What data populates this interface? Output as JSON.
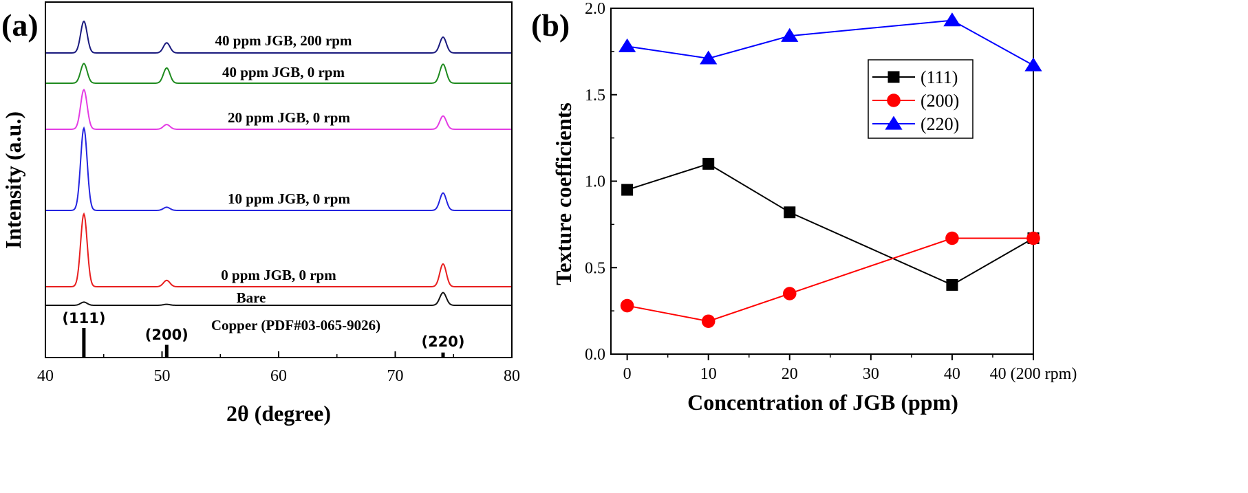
{
  "chart_data": [
    {
      "panel": "(a)",
      "type": "line",
      "xlabel": "2θ (degree)",
      "ylabel": "Intensity (a.u.)",
      "xlim": [
        40,
        80
      ],
      "xticks": [
        40,
        50,
        60,
        70,
        80
      ],
      "series": [
        {
          "name": "40 ppm JGB, 200 rpm",
          "color": "#1a1a7e",
          "peaks": [
            {
              "x": 43.3,
              "h": 1.0
            },
            {
              "x": 50.4,
              "h": 0.32
            },
            {
              "x": 74.1,
              "h": 0.5
            }
          ]
        },
        {
          "name": "40 ppm JGB, 0 rpm",
          "color": "#1e8a1e",
          "peaks": [
            {
              "x": 43.3,
              "h": 0.62
            },
            {
              "x": 50.4,
              "h": 0.48
            },
            {
              "x": 74.1,
              "h": 0.6
            }
          ]
        },
        {
          "name": "20 ppm JGB, 0 rpm",
          "color": "#e43ce4",
          "peaks": [
            {
              "x": 43.3,
              "h": 1.25
            },
            {
              "x": 50.4,
              "h": 0.15
            },
            {
              "x": 74.1,
              "h": 0.42
            }
          ]
        },
        {
          "name": "10 ppm JGB, 0 rpm",
          "color": "#2424e0",
          "peaks": [
            {
              "x": 43.3,
              "h": 2.6
            },
            {
              "x": 50.4,
              "h": 0.1
            },
            {
              "x": 74.1,
              "h": 0.55
            }
          ]
        },
        {
          "name": "0 ppm JGB, 0 rpm",
          "color": "#e81e1e",
          "peaks": [
            {
              "x": 43.3,
              "h": 2.3
            },
            {
              "x": 50.4,
              "h": 0.2
            },
            {
              "x": 74.1,
              "h": 0.72
            }
          ]
        },
        {
          "name": "Bare",
          "color": "#111111",
          "peaks": [
            {
              "x": 43.3,
              "h": 0.1
            },
            {
              "x": 50.4,
              "h": 0.03
            },
            {
              "x": 74.1,
              "h": 0.4
            }
          ]
        }
      ],
      "reference": {
        "name": "Copper (PDF#03-065-9026)",
        "lines": [
          {
            "x": 43.3,
            "label": "(111)",
            "height": 1.0
          },
          {
            "x": 50.4,
            "label": "(200)",
            "height": 0.43
          },
          {
            "x": 74.1,
            "label": "(220)",
            "height": 0.17
          }
        ]
      }
    },
    {
      "panel": "(b)",
      "type": "line",
      "xlabel": "Concentration of JGB (ppm)",
      "ylabel": "Texture coefficients",
      "ylim": [
        0.0,
        2.0
      ],
      "yticks": [
        "0.0",
        "0.5",
        "1.0",
        "1.5",
        "2.0"
      ],
      "xlim": [
        -2,
        50
      ],
      "xticks": [
        {
          "pos": 0,
          "label": "0"
        },
        {
          "pos": 10,
          "label": "10"
        },
        {
          "pos": 20,
          "label": "20"
        },
        {
          "pos": 30,
          "label": "30"
        },
        {
          "pos": 40,
          "label": "40"
        },
        {
          "pos": 50,
          "label": "40 (200 rpm)"
        }
      ],
      "x": [
        0,
        10,
        20,
        40,
        50
      ],
      "legend_position": "upper-right",
      "series": [
        {
          "name": "(111)",
          "color": "#000000",
          "marker": "square",
          "values": [
            0.95,
            1.1,
            0.82,
            0.4,
            0.67
          ]
        },
        {
          "name": "(200)",
          "color": "#ff0000",
          "marker": "circle",
          "values": [
            0.28,
            0.19,
            0.35,
            0.67,
            0.67
          ]
        },
        {
          "name": "(220)",
          "color": "#0000ff",
          "marker": "triangle",
          "values": [
            1.78,
            1.71,
            1.84,
            1.93,
            1.67
          ]
        }
      ]
    }
  ]
}
